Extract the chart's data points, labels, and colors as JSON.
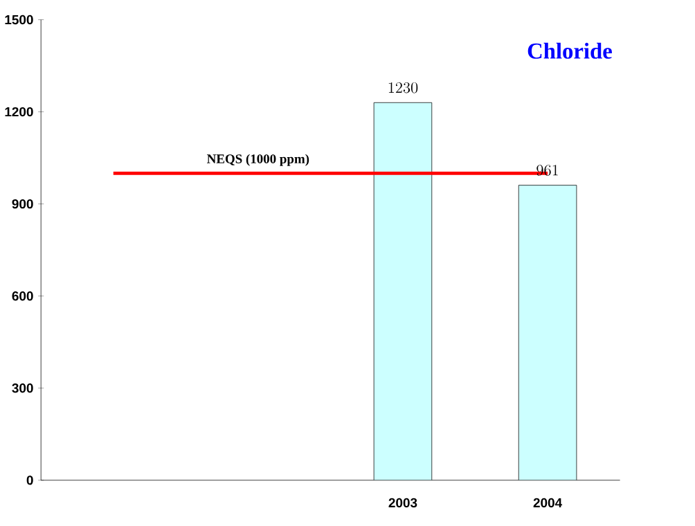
{
  "chart_data": {
    "type": "bar",
    "title": "Chloride",
    "categories": [
      null,
      null,
      "2003",
      "2004"
    ],
    "series": [
      {
        "color": "#ccffff",
        "values": [
          null,
          null,
          1230,
          961
        ]
      }
    ],
    "data_labels": true,
    "ylim": [
      0,
      1500
    ],
    "yticks": [
      0,
      300,
      600,
      900,
      1200,
      1500
    ],
    "ref_lines": [
      {
        "axis": "y",
        "value": 1000,
        "label": "NEQS (1000 ppm)",
        "color": "#ff0000"
      }
    ]
  }
}
